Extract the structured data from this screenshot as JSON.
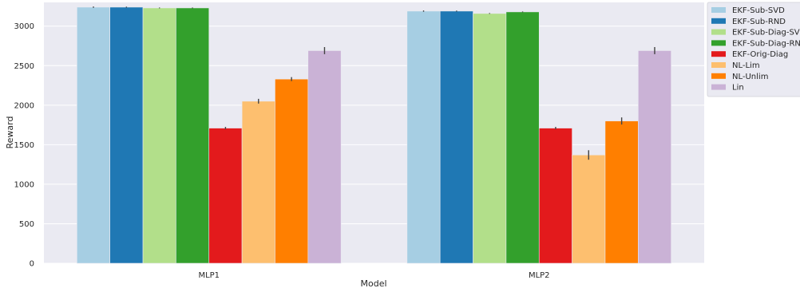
{
  "chart_data": {
    "type": "bar",
    "title": "",
    "xlabel": "Model",
    "ylabel": "Reward",
    "ylim": [
      0,
      3300
    ],
    "yticks": [
      0,
      500,
      1000,
      1500,
      2000,
      2500,
      3000
    ],
    "ytick_labels": [
      "0",
      "500",
      "1000",
      "1500",
      "2000",
      "2500",
      "3000"
    ],
    "categories": [
      "MLP1",
      "MLP2"
    ],
    "grid": true,
    "legend_position": "outside top-right",
    "series": [
      {
        "name": "EKF-Sub-SVD",
        "color": "#a6cee3",
        "values": [
          3240,
          3190
        ],
        "err": [
          8,
          8
        ]
      },
      {
        "name": "EKF-Sub-RND",
        "color": "#1f78b4",
        "values": [
          3240,
          3190
        ],
        "err": [
          6,
          6
        ]
      },
      {
        "name": "EKF-Sub-Diag-SVD",
        "color": "#b2df8a",
        "values": [
          3230,
          3160
        ],
        "err": [
          5,
          5
        ]
      },
      {
        "name": "EKF-Sub-Diag-RND",
        "color": "#33a02c",
        "values": [
          3230,
          3180
        ],
        "err": [
          5,
          5
        ]
      },
      {
        "name": "EKF-Orig-Diag",
        "color": "#e31a1c",
        "values": [
          1710,
          1710
        ],
        "err": [
          15,
          15
        ]
      },
      {
        "name": "NL-Lim",
        "color": "#fdbf6f",
        "values": [
          2050,
          1370
        ],
        "err": [
          30,
          60
        ]
      },
      {
        "name": "NL-Unlim",
        "color": "#ff7f00",
        "values": [
          2330,
          1800
        ],
        "err": [
          25,
          45
        ]
      },
      {
        "name": "Lin",
        "color": "#cab2d6",
        "values": [
          2690,
          2690
        ],
        "err": [
          45,
          45
        ]
      }
    ]
  }
}
